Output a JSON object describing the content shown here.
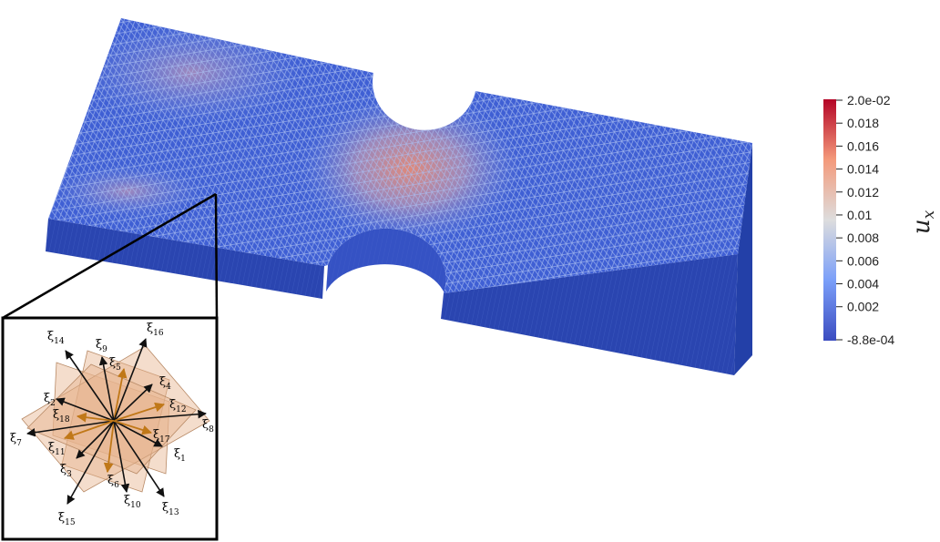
{
  "colorbar": {
    "title_main": "u",
    "title_sub": "x",
    "ticks": [
      {
        "value": 0.02,
        "label": "2.0e-02"
      },
      {
        "value": 0.018,
        "label": "0.018"
      },
      {
        "value": 0.016,
        "label": "0.016"
      },
      {
        "value": 0.014,
        "label": "0.014"
      },
      {
        "value": 0.012,
        "label": "0.012"
      },
      {
        "value": 0.01,
        "label": "0.01"
      },
      {
        "value": 0.008,
        "label": "0.008"
      },
      {
        "value": 0.006,
        "label": "0.006"
      },
      {
        "value": 0.004,
        "label": "0.004"
      },
      {
        "value": 0.002,
        "label": "0.002"
      },
      {
        "value": -0.00088,
        "label": "-8.8e-04"
      }
    ],
    "range": [
      -0.00088,
      0.02
    ],
    "colors": {
      "low": "#3b4cc0",
      "mid": "#dddddd",
      "high": "#b40426"
    }
  },
  "specimen": {
    "colors": {
      "base": "#3f5fd4",
      "mesh": "#9db4ee",
      "side": "#2a45b0",
      "hot": "#e88a70"
    }
  },
  "inset": {
    "directions": [
      {
        "label": "ξ",
        "index": "1"
      },
      {
        "label": "ξ",
        "index": "2"
      },
      {
        "label": "ξ",
        "index": "3"
      },
      {
        "label": "ξ",
        "index": "4"
      },
      {
        "label": "ξ",
        "index": "5"
      },
      {
        "label": "ξ",
        "index": "6"
      },
      {
        "label": "ξ",
        "index": "7"
      },
      {
        "label": "ξ",
        "index": "8"
      },
      {
        "label": "ξ",
        "index": "9"
      },
      {
        "label": "ξ",
        "index": "10"
      },
      {
        "label": "ξ",
        "index": "11"
      },
      {
        "label": "ξ",
        "index": "12"
      },
      {
        "label": "ξ",
        "index": "13"
      },
      {
        "label": "ξ",
        "index": "14"
      },
      {
        "label": "ξ",
        "index": "15"
      },
      {
        "label": "ξ",
        "index": "16"
      },
      {
        "label": "ξ",
        "index": "17"
      },
      {
        "label": "ξ",
        "index": "18"
      }
    ],
    "colors": {
      "plane": "#e7b48f",
      "black_arrow": "#111111",
      "orange_arrow": "#c07818"
    }
  }
}
